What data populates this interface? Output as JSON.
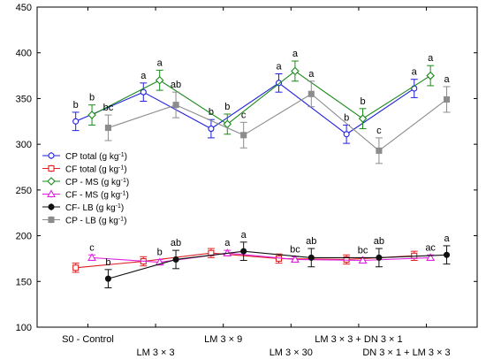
{
  "chart_data": {
    "type": "line",
    "title": "",
    "xlabel": "",
    "ylabel": "",
    "ylim": [
      100,
      450
    ],
    "yticks": [
      100,
      150,
      200,
      250,
      300,
      350,
      400,
      450
    ],
    "grid": false,
    "legend_position": "left-middle",
    "groups": [
      {
        "name": "S0 - Control",
        "row": 1
      },
      {
        "name": "LM 3 × 3",
        "row": 2
      },
      {
        "name": "LM 3 × 9",
        "row": 1
      },
      {
        "name": "LM 3 × 30",
        "row": 2
      },
      {
        "name": "LM 3 × 3 + DN 3 × 1",
        "row": 1
      },
      {
        "name": "DN 3 × 1 + LM 3 × 3",
        "row": 2
      }
    ],
    "series": [
      {
        "name": "CP total",
        "unit": "(g kg",
        "unit_sup": "-1",
        "unit_close": ")",
        "color": "#1f1fe0",
        "marker": "circle",
        "filled": false,
        "offset": -0.18,
        "values": [
          325,
          357,
          317,
          367,
          311,
          361
        ],
        "errors": [
          10,
          10,
          10,
          10,
          10,
          10
        ],
        "labels": [
          "b",
          "a",
          "b",
          "a",
          "b",
          "a"
        ]
      },
      {
        "name": "CF total",
        "unit": "(g kg",
        "unit_sup": "-1",
        "unit_close": ")",
        "color": "#e02020",
        "marker": "square",
        "filled": false,
        "offset": -0.18,
        "values": [
          165,
          172,
          181,
          175,
          174,
          178
        ],
        "errors": [
          5,
          5,
          5,
          5,
          5,
          5
        ],
        "labels": [
          "",
          "",
          "",
          "",
          "",
          ""
        ]
      },
      {
        "name": "CP - MS",
        "unit": "(g kg",
        "unit_sup": "-1",
        "unit_close": ")",
        "color": "#1a8a1a",
        "marker": "diamond",
        "filled": false,
        "offset": 0.06,
        "values": [
          332,
          370,
          322,
          380,
          328,
          375
        ],
        "errors": [
          11,
          11,
          11,
          11,
          11,
          11
        ],
        "labels": [
          "b",
          "a",
          "b",
          "a",
          "b",
          "a"
        ]
      },
      {
        "name": "CF - MS",
        "unit": "(g kg",
        "unit_sup": "-1",
        "unit_close": ")",
        "color": "#e020e0",
        "marker": "triangle",
        "filled": false,
        "offset": 0.06,
        "values": [
          176,
          171,
          181,
          174,
          173,
          176
        ],
        "errors": [
          3,
          3,
          3,
          3,
          3,
          3
        ],
        "labels": [
          "c",
          "b",
          "a",
          "bc",
          "bc",
          "ac"
        ]
      },
      {
        "name": "CF- LB",
        "unit": "(g kg",
        "unit_sup": "-1",
        "unit_close": ")",
        "color": "#111111",
        "marker": "circle",
        "filled": true,
        "offset": 0.3,
        "values": [
          153,
          174,
          183,
          176,
          176,
          179
        ],
        "errors": [
          10,
          10,
          10,
          10,
          10,
          10
        ],
        "labels": [
          "b",
          "ab",
          "a",
          "ab",
          "ab",
          "a"
        ]
      },
      {
        "name": "CP - LB",
        "unit": "(g kg",
        "unit_sup": "-1",
        "unit_close": ")",
        "color": "#8c8c8c",
        "marker": "square",
        "filled": true,
        "offset": 0.3,
        "values": [
          318,
          343,
          310,
          355,
          293,
          349
        ],
        "errors": [
          14,
          14,
          14,
          14,
          14,
          14
        ],
        "labels": [
          "bc",
          "ab",
          "c",
          "a",
          "c",
          "a"
        ]
      }
    ]
  }
}
